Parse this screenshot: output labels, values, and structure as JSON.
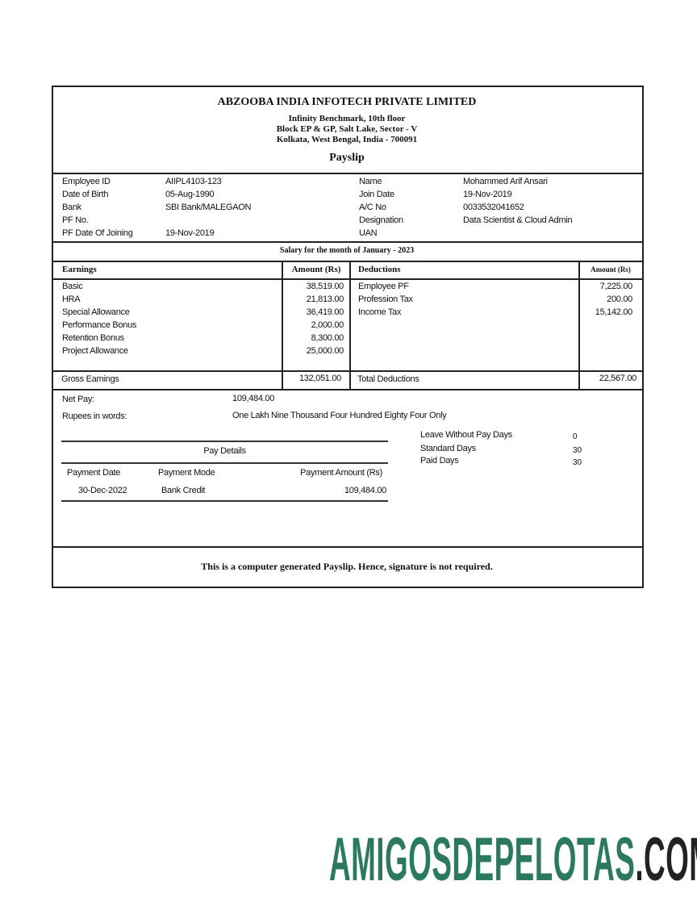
{
  "company": {
    "name": "ABZOOBA INDIA INFOTECH PRIVATE LIMITED",
    "address": [
      "Infinity Benchmark, 10th floor",
      "Block EP & GP, Salt Lake, Sector - V",
      "Kolkata, West Bengal, India - 700091"
    ],
    "doc_title": "Payslip"
  },
  "employee": {
    "left": [
      {
        "label": "Employee ID",
        "value": "AIIPL4103-123"
      },
      {
        "label": "Date of Birth",
        "value": "05-Aug-1990"
      },
      {
        "label": "Bank",
        "value": "SBI Bank/MALEGAON"
      },
      {
        "label": "PF No.",
        "value": ""
      },
      {
        "label": "PF Date Of Joining",
        "value": "19-Nov-2019"
      }
    ],
    "right": [
      {
        "label": "Name",
        "value": "Mohammed Arif Ansari"
      },
      {
        "label": "Join Date",
        "value": "19-Nov-2019"
      },
      {
        "label": "A/C No",
        "value": "0033532041652"
      },
      {
        "label": "Designation",
        "value": "Data Scientist & Cloud Admin"
      },
      {
        "label": "UAN",
        "value": ""
      }
    ]
  },
  "salary_month": "Salary for the month of January - 2023",
  "earnings": {
    "header": "Earnings",
    "amount_header": "Amount (Rs)",
    "items": [
      {
        "label": "Basic",
        "amount": "38,519.00"
      },
      {
        "label": "HRA",
        "amount": "21,813.00"
      },
      {
        "label": "Special Allowance",
        "amount": "36,419.00"
      },
      {
        "label": "Performance Bonus",
        "amount": "2,000.00"
      },
      {
        "label": "Retention Bonus",
        "amount": "8,300.00"
      },
      {
        "label": "Project Allowance",
        "amount": "25,000.00"
      }
    ],
    "total_label": "Gross Earnings",
    "total": "132,051.00"
  },
  "deductions": {
    "header": "Deductions",
    "amount_header": "Amount (Rs)",
    "items": [
      {
        "label": "Employee PF",
        "amount": "7,225.00"
      },
      {
        "label": "Profession Tax",
        "amount": "200.00"
      },
      {
        "label": "Income Tax",
        "amount": "15,142.00"
      }
    ],
    "total_label": "Total Deductions",
    "total": "22,567.00"
  },
  "net_pay": {
    "label": "Net Pay:",
    "value": "109,484.00",
    "words_label": "Rupees in words:",
    "words": "One Lakh Nine Thousand Four Hundred Eighty Four Only"
  },
  "days": [
    {
      "label": "Leave Without Pay Days",
      "value": "0"
    },
    {
      "label": "Standard Days",
      "value": "30"
    },
    {
      "label": "Paid Days",
      "value": "30"
    }
  ],
  "pay_details": {
    "title": "Pay Details",
    "headers": [
      "Payment Date",
      "Payment Mode",
      "Payment Amount (Rs)"
    ],
    "row": [
      "30-Dec-2022",
      "Bank Credit",
      "109,484.00"
    ]
  },
  "footer": "This is a computer generated Payslip. Hence, signature is not required.",
  "watermark": {
    "text_main": "AMIGOSDEPELOTAS",
    "text_suffix": ".COM",
    "color_main": "#2b7a5e",
    "color_suffix": "#222222"
  }
}
